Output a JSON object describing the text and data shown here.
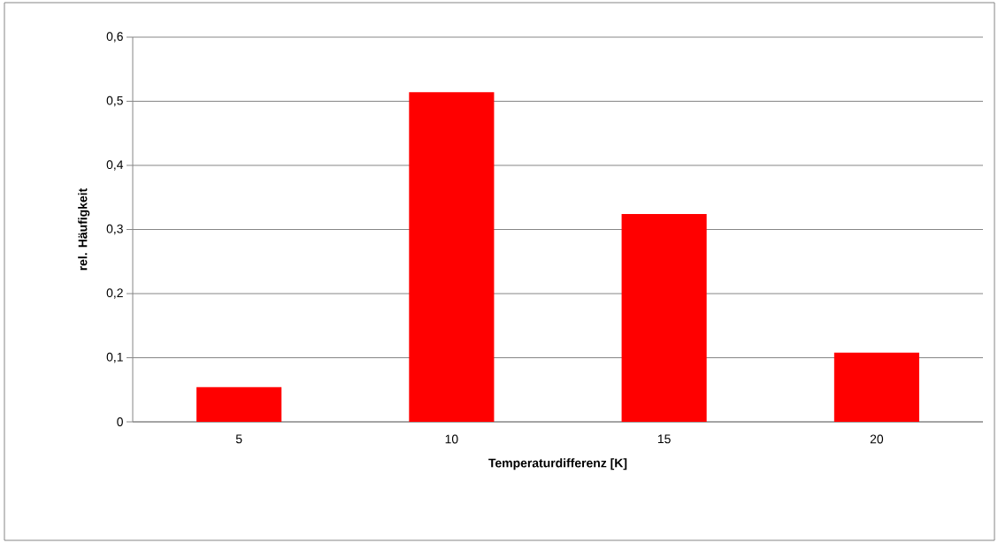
{
  "chart_data": {
    "type": "bar",
    "xlabel": "Temperaturdifferenz [K]",
    "ylabel": "rel. Häufigkeit",
    "categories": [
      "5",
      "10",
      "15",
      "20"
    ],
    "values": [
      0.054,
      0.514,
      0.324,
      0.108
    ],
    "color": "#ff0000",
    "ylim": [
      0,
      0.6
    ],
    "yticks": [
      0,
      {
        "value": 0.1,
        "label": "0,1"
      },
      {
        "value": 0.2,
        "label": "0,2"
      },
      {
        "value": 0.3,
        "label": "0,3"
      },
      {
        "value": 0.4,
        "label": "0,4"
      },
      {
        "value": 0.5,
        "label": "0,5"
      },
      {
        "value": 0.6,
        "label": "0,6"
      }
    ],
    "grid": "y"
  }
}
